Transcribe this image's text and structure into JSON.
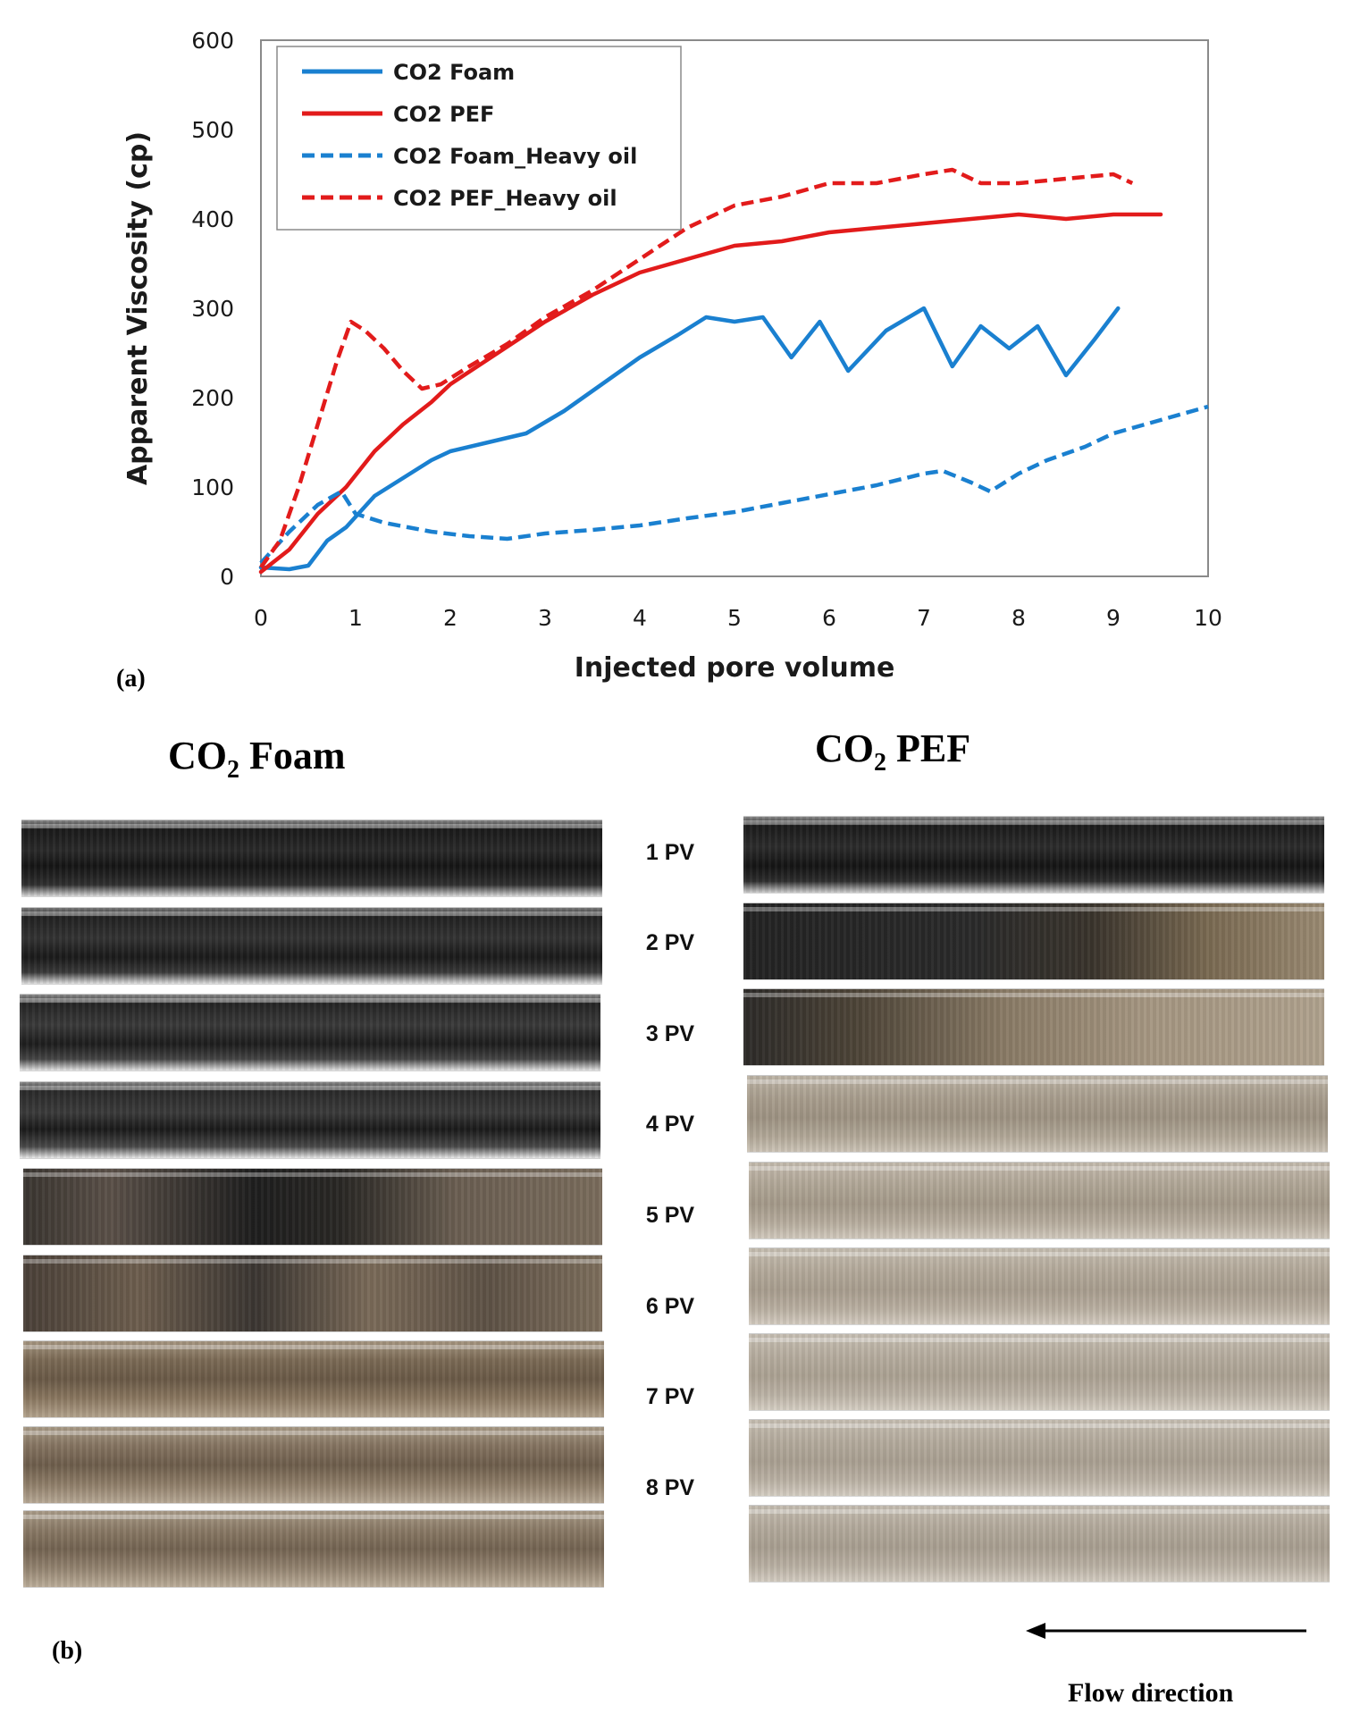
{
  "chart_data": {
    "type": "line",
    "xlabel": "Injected pore volume",
    "ylabel": "Apparent Viscosity (cp)",
    "xlim": [
      0,
      10
    ],
    "ylim": [
      0,
      600
    ],
    "xticks": [
      "0",
      "1",
      "2",
      "3",
      "4",
      "5",
      "6",
      "7",
      "8",
      "9",
      "10"
    ],
    "yticks": [
      "0",
      "100",
      "200",
      "300",
      "400",
      "500",
      "600"
    ],
    "grid": false,
    "legend_position": "top-left",
    "series": [
      {
        "name": "CO2 Foam",
        "color": "#1a80d0",
        "style": "solid",
        "x": [
          0,
          0.3,
          0.5,
          0.7,
          0.9,
          1.2,
          1.5,
          1.8,
          2.0,
          2.4,
          2.8,
          3.2,
          3.6,
          4.0,
          4.4,
          4.7,
          5.0,
          5.3,
          5.6,
          5.9,
          6.2,
          6.6,
          7.0,
          7.3,
          7.6,
          7.9,
          8.2,
          8.5,
          8.8,
          9.05
        ],
        "y": [
          10,
          8,
          12,
          40,
          55,
          90,
          110,
          130,
          140,
          150,
          160,
          185,
          215,
          245,
          270,
          290,
          285,
          290,
          245,
          285,
          230,
          275,
          300,
          235,
          280,
          255,
          280,
          225,
          265,
          300
        ]
      },
      {
        "name": "CO2 PEF",
        "color": "#e21b1b",
        "style": "solid",
        "x": [
          0,
          0.3,
          0.6,
          0.9,
          1.2,
          1.5,
          1.8,
          2.0,
          2.5,
          3.0,
          3.5,
          4.0,
          4.5,
          5.0,
          5.5,
          6.0,
          6.5,
          7.0,
          7.5,
          8.0,
          8.5,
          9.0,
          9.5
        ],
        "y": [
          5,
          30,
          70,
          100,
          140,
          170,
          195,
          215,
          250,
          285,
          315,
          340,
          355,
          370,
          375,
          385,
          390,
          395,
          400,
          405,
          400,
          405,
          405
        ]
      },
      {
        "name": "CO2 Foam_Heavy oil",
        "color": "#1a80d0",
        "style": "dashed",
        "x": [
          0,
          0.3,
          0.6,
          0.85,
          1.0,
          1.3,
          1.8,
          2.2,
          2.6,
          3.0,
          3.5,
          4.0,
          4.5,
          5.0,
          5.5,
          6.0,
          6.5,
          7.0,
          7.2,
          7.5,
          7.7,
          8.0,
          8.3,
          8.7,
          9.0,
          9.5,
          10.0
        ],
        "y": [
          15,
          50,
          80,
          95,
          70,
          60,
          50,
          45,
          42,
          48,
          52,
          57,
          65,
          72,
          82,
          92,
          102,
          115,
          118,
          105,
          95,
          115,
          130,
          145,
          160,
          175,
          190
        ]
      },
      {
        "name": "CO2 PEF_Heavy oil",
        "color": "#e21b1b",
        "style": "dashed",
        "x": [
          0,
          0.2,
          0.4,
          0.6,
          0.8,
          0.95,
          1.1,
          1.3,
          1.5,
          1.7,
          1.9,
          2.2,
          2.6,
          3.0,
          3.5,
          4.0,
          4.5,
          5.0,
          5.5,
          6.0,
          6.5,
          7.0,
          7.3,
          7.6,
          8.0,
          8.5,
          9.0,
          9.2
        ],
        "y": [
          10,
          40,
          100,
          170,
          240,
          285,
          275,
          255,
          230,
          210,
          215,
          235,
          260,
          290,
          320,
          355,
          390,
          415,
          425,
          440,
          440,
          450,
          455,
          440,
          440,
          445,
          450,
          440
        ]
      }
    ]
  },
  "panel_a_label": "(a)",
  "panel_b_label": "(b)",
  "columns": {
    "left_title_main": "CO",
    "left_title_sub": "2",
    "left_title_rest": " Foam",
    "right_title_main": "CO",
    "right_title_sub": "2",
    "right_title_rest": " PEF"
  },
  "pv_labels": [
    "1 PV",
    "2 PV",
    "3 PV",
    "4 PV",
    "5 PV",
    "6 PV",
    "7 PV",
    "8 PV"
  ],
  "flow_direction": "Flow direction"
}
